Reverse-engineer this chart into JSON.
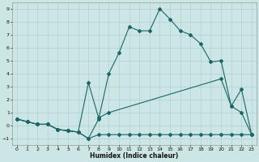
{
  "xlabel": "Humidex (Indice chaleur)",
  "bg_color": "#cce5e5",
  "grid_color": "#aacccc",
  "line_color": "#1a6666",
  "xlim": [
    -0.5,
    23.5
  ],
  "ylim": [
    -1.5,
    9.5
  ],
  "xticks": [
    0,
    1,
    2,
    3,
    4,
    5,
    6,
    7,
    8,
    9,
    10,
    11,
    12,
    13,
    14,
    15,
    16,
    17,
    18,
    19,
    20,
    21,
    22,
    23
  ],
  "yticks": [
    -1,
    0,
    1,
    2,
    3,
    4,
    5,
    6,
    7,
    8,
    9
  ],
  "line1_x": [
    0,
    1,
    2,
    3,
    4,
    5,
    6,
    7,
    8,
    9,
    10,
    11,
    12,
    13,
    14,
    15,
    16,
    17,
    18,
    19,
    20,
    21,
    22,
    23
  ],
  "line1_y": [
    0.5,
    0.3,
    0.1,
    0.1,
    -0.3,
    -0.4,
    -0.5,
    -1.0,
    0.5,
    4.0,
    5.6,
    7.6,
    7.3,
    7.3,
    9.0,
    8.2,
    7.3,
    7.0,
    6.3,
    4.9,
    5.0,
    1.5,
    1.0,
    -0.7
  ],
  "line2_x": [
    0,
    1,
    2,
    3,
    4,
    5,
    6,
    7,
    8,
    9,
    20,
    21,
    22,
    23
  ],
  "line2_y": [
    0.5,
    0.3,
    0.1,
    0.1,
    -0.3,
    -0.4,
    -0.5,
    3.3,
    0.6,
    1.0,
    3.6,
    1.5,
    2.8,
    -0.7
  ],
  "line3_x": [
    0,
    1,
    2,
    3,
    4,
    5,
    6,
    7,
    8,
    9,
    10,
    11,
    12,
    13,
    14,
    15,
    16,
    17,
    18,
    19,
    20,
    21,
    22,
    23
  ],
  "line3_y": [
    0.5,
    0.3,
    0.1,
    0.1,
    -0.3,
    -0.4,
    -0.5,
    -1.0,
    -0.7,
    -0.7,
    -0.7,
    -0.7,
    -0.7,
    -0.7,
    -0.7,
    -0.7,
    -0.7,
    -0.7,
    -0.7,
    -0.7,
    -0.7,
    -0.7,
    -0.7,
    -0.7
  ]
}
